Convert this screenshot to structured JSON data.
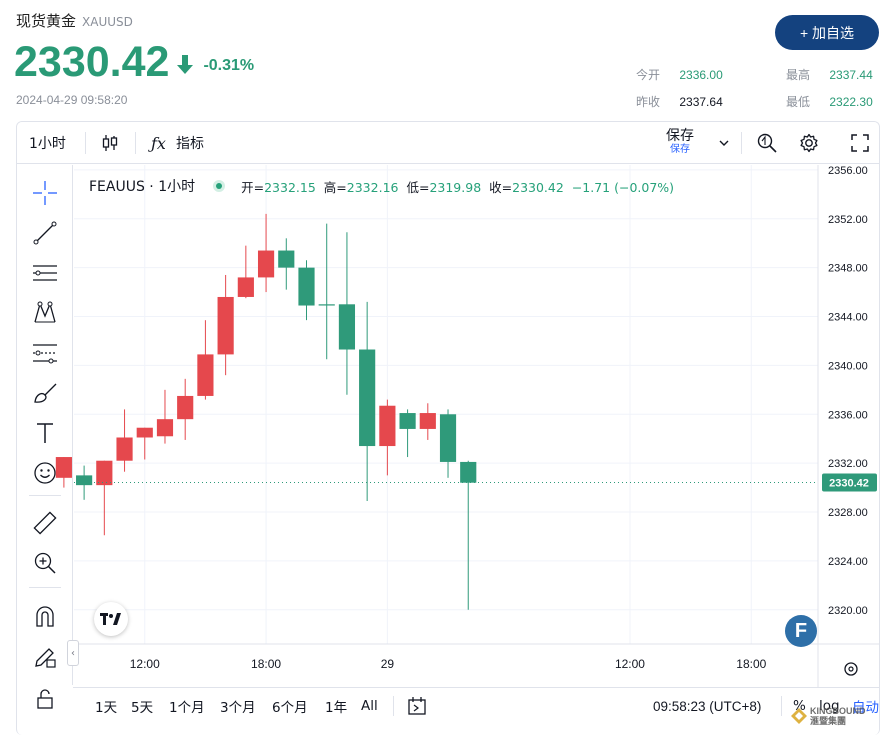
{
  "header": {
    "name": "现货黄金",
    "symbol": "XAUUSD",
    "price": "2330.42",
    "change_pct": "-0.31%",
    "timestamp": "2024-04-29 09:58:20",
    "add_button": "+ 加自选",
    "stats": {
      "open_label": "今开",
      "open_value": "2336.00",
      "prev_close_label": "昨收",
      "prev_close_value": "2337.64",
      "high_label": "最高",
      "high_value": "2337.44",
      "low_label": "最低",
      "low_value": "2322.30"
    }
  },
  "toolbar": {
    "interval": "1小时",
    "indicators_label": "指标",
    "save_label": "保存",
    "save_sub_label": "保存"
  },
  "legend": {
    "symbol_interval": "FEAUUS · 1小时",
    "open_key": "开=",
    "open_val": "2332.15",
    "high_key": "高=",
    "high_val": "2332.16",
    "low_key": "低=",
    "low_val": "2319.98",
    "close_key": "收=",
    "close_val": "2330.42",
    "change": "−1.71 (−0.07%)"
  },
  "bottom_bar": {
    "ranges": [
      "1天",
      "5天",
      "1个月",
      "3个月",
      "6个月",
      "1年",
      "All"
    ],
    "clock": "09:58:23 (UTC+8)",
    "percent_label": "%",
    "log_label": "log",
    "auto_label": "自动"
  },
  "watermark": {
    "line1": "KINGBOUND",
    "line2": "滙暨集團"
  },
  "colors": {
    "up": "#e5484d",
    "down": "#2f9a7a",
    "accent": "#14427f",
    "price_text": "#2a9a76"
  },
  "chart_data": {
    "type": "candlestick",
    "x_tick_labels": [
      "12:00",
      "18:00",
      "29",
      "12:00",
      "18:00"
    ],
    "x_tick_hours": [
      12,
      18,
      24,
      36,
      42
    ],
    "y_tick_labels": [
      "2356.00",
      "2352.00",
      "2348.00",
      "2344.00",
      "2340.00",
      "2336.00",
      "2332.00",
      "2328.00",
      "2324.00",
      "2320.00"
    ],
    "y_ticks": [
      2356,
      2352,
      2348,
      2344,
      2340,
      2336,
      2332,
      2328,
      2324,
      2320
    ],
    "ylim": [
      2317.2,
      2356.4
    ],
    "hours_start": 8.5,
    "hours_end": 45.3,
    "last_price": 2330.42,
    "last_price_label": "2330.42",
    "candles": [
      {
        "t": 8,
        "o": 2330.8,
        "h": 2332.5,
        "l": 2330.0,
        "c": 2332.5
      },
      {
        "t": 9,
        "o": 2331.0,
        "h": 2331.8,
        "l": 2329.0,
        "c": 2330.2
      },
      {
        "t": 10,
        "o": 2330.2,
        "h": 2332.2,
        "l": 2326.1,
        "c": 2332.2
      },
      {
        "t": 11,
        "o": 2332.2,
        "h": 2336.4,
        "l": 2331.3,
        "c": 2334.1
      },
      {
        "t": 12,
        "o": 2334.1,
        "h": 2334.9,
        "l": 2332.3,
        "c": 2334.9
      },
      {
        "t": 13,
        "o": 2334.2,
        "h": 2338.0,
        "l": 2333.6,
        "c": 2335.6
      },
      {
        "t": 14,
        "o": 2335.6,
        "h": 2338.9,
        "l": 2333.9,
        "c": 2337.5
      },
      {
        "t": 15,
        "o": 2337.5,
        "h": 2343.7,
        "l": 2337.2,
        "c": 2340.9
      },
      {
        "t": 16,
        "o": 2340.9,
        "h": 2347.4,
        "l": 2339.2,
        "c": 2345.6
      },
      {
        "t": 17,
        "o": 2345.6,
        "h": 2349.8,
        "l": 2345.5,
        "c": 2347.2
      },
      {
        "t": 18,
        "o": 2347.2,
        "h": 2352.4,
        "l": 2346.0,
        "c": 2349.4
      },
      {
        "t": 19,
        "o": 2349.4,
        "h": 2350.4,
        "l": 2346.2,
        "c": 2348.0
      },
      {
        "t": 20,
        "o": 2348.0,
        "h": 2348.6,
        "l": 2343.7,
        "c": 2344.9
      },
      {
        "t": 21,
        "o": 2345.0,
        "h": 2351.6,
        "l": 2340.5,
        "c": 2344.9
      },
      {
        "t": 22,
        "o": 2345.0,
        "h": 2350.9,
        "l": 2337.6,
        "c": 2341.3
      },
      {
        "t": 23,
        "o": 2341.3,
        "h": 2345.2,
        "l": 2328.9,
        "c": 2333.4
      },
      {
        "t": 24,
        "o": 2333.4,
        "h": 2337.2,
        "l": 2331.0,
        "c": 2336.7
      },
      {
        "t": 25,
        "o": 2336.1,
        "h": 2336.4,
        "l": 2332.5,
        "c": 2334.8
      },
      {
        "t": 26,
        "o": 2334.8,
        "h": 2336.9,
        "l": 2333.9,
        "c": 2336.1
      },
      {
        "t": 27,
        "o": 2336.0,
        "h": 2336.4,
        "l": 2330.8,
        "c": 2332.1
      },
      {
        "t": 28,
        "o": 2332.1,
        "h": 2332.2,
        "l": 2320.0,
        "c": 2330.4
      }
    ]
  }
}
